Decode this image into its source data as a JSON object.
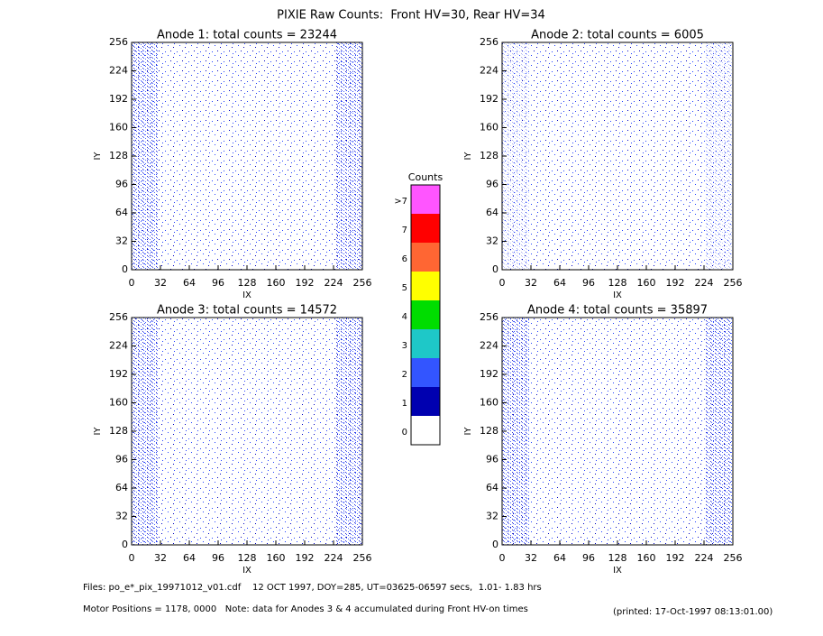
{
  "title": "PIXIE Raw Counts:  Front HV=30, Rear HV=34",
  "chart_data": [
    {
      "type": "heatmap",
      "title": "Anode 1: total counts = 23244",
      "xlabel": "IX",
      "ylabel": "IY",
      "xlim": [
        0,
        256
      ],
      "ylim": [
        0,
        256
      ],
      "xticks": [
        0,
        32,
        64,
        96,
        128,
        160,
        192,
        224,
        256
      ],
      "yticks": [
        0,
        32,
        64,
        96,
        128,
        160,
        192,
        224,
        256
      ]
    },
    {
      "type": "heatmap",
      "title": "Anode 2: total counts = 6005",
      "xlabel": "IX",
      "ylabel": "IY",
      "xlim": [
        0,
        256
      ],
      "ylim": [
        0,
        256
      ],
      "xticks": [
        0,
        32,
        64,
        96,
        128,
        160,
        192,
        224,
        256
      ],
      "yticks": [
        0,
        32,
        64,
        96,
        128,
        160,
        192,
        224,
        256
      ]
    },
    {
      "type": "heatmap",
      "title": "Anode 3: total counts = 14572",
      "xlabel": "IX",
      "ylabel": "IY",
      "xlim": [
        0,
        256
      ],
      "ylim": [
        0,
        256
      ],
      "xticks": [
        0,
        32,
        64,
        96,
        128,
        160,
        192,
        224,
        256
      ],
      "yticks": [
        0,
        32,
        64,
        96,
        128,
        160,
        192,
        224,
        256
      ]
    },
    {
      "type": "heatmap",
      "title": "Anode 4: total counts = 35897",
      "xlabel": "IX",
      "ylabel": "IY",
      "xlim": [
        0,
        256
      ],
      "ylim": [
        0,
        256
      ],
      "xticks": [
        0,
        32,
        64,
        96,
        128,
        160,
        192,
        224,
        256
      ],
      "yticks": [
        0,
        32,
        64,
        96,
        128,
        160,
        192,
        224,
        256
      ]
    }
  ],
  "colorbar": {
    "title": "Counts",
    "levels": [
      {
        "label": "0",
        "color": "#ffffff"
      },
      {
        "label": "1",
        "color": "#0000b0"
      },
      {
        "label": "2",
        "color": "#3355ff"
      },
      {
        "label": "3",
        "color": "#1ec8c8"
      },
      {
        "label": "4",
        "color": "#00dd00"
      },
      {
        "label": "5",
        "color": "#ffff00"
      },
      {
        "label": "6",
        "color": "#ff6633"
      },
      {
        "label": "7",
        "color": "#ff0000"
      },
      {
        "label": ">7",
        "color": "#ff55ff"
      }
    ]
  },
  "footer": {
    "files": "Files: po_e*_pix_19971012_v01.cdf    12 OCT 1997, DOY=285, UT=03625-06597 secs,  1.01- 1.83 hrs",
    "motor": "Motor Positions = 1178, 0000   Note: data for Anodes 3 & 4 accumulated during Front HV-on times",
    "printed": "(printed: 17-Oct-1997 08:13:01.00)"
  }
}
